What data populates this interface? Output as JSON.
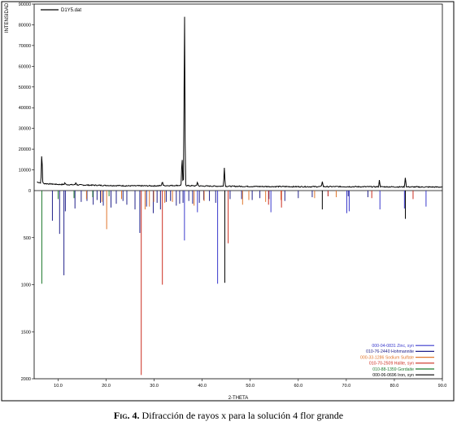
{
  "caption": {
    "label": "Fig. 4.",
    "text": " Difracción de rayos x para la solución 4 flor grande"
  },
  "chart_data": {
    "type": "line",
    "xlabel": "2-THETA",
    "x_ticks": [
      "10.0",
      "20.0",
      "30.0",
      "40.0",
      "50.0",
      "60.0",
      "70.0",
      "80.0",
      "90.0"
    ],
    "xlim": [
      5,
      90
    ],
    "grid": false,
    "top_panel": {
      "ylabel": "INTENSIDAD",
      "ylim": [
        0,
        90000
      ],
      "y_ticks": [
        "10000",
        "20000",
        "30000",
        "40000",
        "50000",
        "60000",
        "70000",
        "80000",
        "90000"
      ],
      "series": [
        {
          "name": "D1Y5.dat",
          "color": "#000000",
          "baseline": [
            [
              5.5,
              4200
            ],
            [
              7,
              3400
            ],
            [
              10,
              3000
            ],
            [
              15,
              2700
            ],
            [
              20,
              2500
            ],
            [
              25,
              2300
            ],
            [
              30,
              2300
            ],
            [
              35,
              2500
            ],
            [
              40,
              2200
            ],
            [
              45,
              2100
            ],
            [
              50,
              2000
            ],
            [
              60,
              1900
            ],
            [
              70,
              1900
            ],
            [
              80,
              1800
            ],
            [
              90,
              1700
            ]
          ],
          "peaks": [
            {
              "x": 6.6,
              "y": 18000
            },
            {
              "x": 11.4,
              "y": 3800
            },
            {
              "x": 13.7,
              "y": 4000
            },
            {
              "x": 31.7,
              "y": 4500
            },
            {
              "x": 35.8,
              "y": 16000
            },
            {
              "x": 36.3,
              "y": 86000
            },
            {
              "x": 39.0,
              "y": 4200
            },
            {
              "x": 44.6,
              "y": 11000
            },
            {
              "x": 65.0,
              "y": 4500
            },
            {
              "x": 76.9,
              "y": 5000
            },
            {
              "x": 82.3,
              "y": 6500
            }
          ]
        }
      ]
    },
    "bottom_panel": {
      "ylim": [
        0,
        2000
      ],
      "y_ticks": [
        "500",
        "1000",
        "1500",
        "2000"
      ],
      "series": [
        {
          "name": "000-04-0831 Zinc, syn",
          "color": "#3a3acc",
          "x": [
            36.3,
            39.0,
            43.2,
            54.3,
            70.1,
            70.6,
            77.0,
            82.1,
            86.6
          ],
          "y": [
            530,
            230,
            990,
            230,
            240,
            220,
            200,
            190,
            170
          ]
        },
        {
          "name": "010-76-2440 Hohmannite",
          "color": "#22228a",
          "x": [
            8.8,
            10.3,
            11.2,
            11.5,
            13.5,
            14.8,
            16.0,
            17.3,
            18.1,
            18.8,
            19.4,
            21.0,
            22.1,
            23.5,
            24.3,
            26.0,
            27.0,
            28.4,
            29.8,
            30.6,
            31.3,
            32.5,
            33.4,
            34.6,
            35.3,
            36.0,
            37.2,
            38.0,
            39.4,
            40.3,
            41.5,
            42.8,
            45.8,
            48.2,
            50.4,
            52.0,
            53.9,
            57.2,
            60.0,
            62.9,
            66.2,
            70.4,
            74.5
          ],
          "y": [
            320,
            460,
            900,
            220,
            190,
            120,
            110,
            150,
            100,
            130,
            160,
            180,
            140,
            110,
            150,
            200,
            450,
            170,
            240,
            130,
            200,
            120,
            110,
            160,
            140,
            130,
            110,
            140,
            130,
            100,
            110,
            130,
            90,
            90,
            100,
            80,
            90,
            110,
            80,
            70,
            60,
            60,
            70
          ]
        },
        {
          "name": "000-33-1286 Sodium Sulfate",
          "color": "#e0762c",
          "x": [
            15.9,
            19.1,
            20.1,
            23.2,
            28.1,
            29.0,
            29.9,
            32.2,
            33.8,
            38.3,
            40.4,
            48.4,
            49.7,
            53.2,
            56.4,
            63.4,
            67.9
          ],
          "y": [
            90,
            120,
            410,
            90,
            200,
            170,
            120,
            130,
            120,
            160,
            110,
            150,
            100,
            120,
            100,
            80,
            70
          ]
        },
        {
          "name": "010-70-2509 Halite, syn",
          "color": "#cc2d1f",
          "x": [
            27.3,
            31.7,
            45.4,
            53.8,
            56.5,
            66.2,
            75.3,
            83.9
          ],
          "y": [
            1960,
            1000,
            560,
            150,
            180,
            60,
            80,
            90
          ]
        },
        {
          "name": "010-88-1359 Gordaite",
          "color": "#1f7a2e",
          "x": [
            6.6,
            10.0,
            13.3,
            17.2,
            20.6
          ],
          "y": [
            990,
            90,
            80,
            70,
            60
          ]
        },
        {
          "name": "000-06-0696 Iron, syn",
          "color": "#000000",
          "x": [
            44.7,
            65.0,
            82.3
          ],
          "y": [
            980,
            200,
            300
          ]
        }
      ]
    },
    "top_legend_position": "top-left",
    "bottom_legend_position": "bottom-right"
  }
}
